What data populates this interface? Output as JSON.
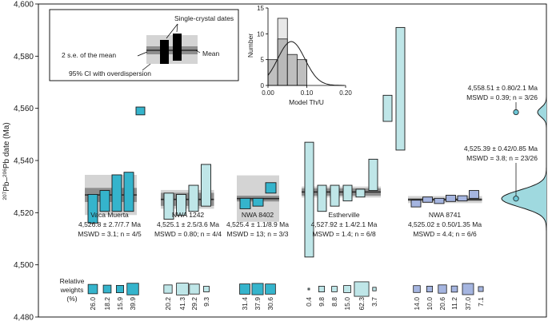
{
  "chart_data": {
    "type": "scatter",
    "title": "",
    "ylabel_superscript_1": "207",
    "ylabel_mid": "Pb–",
    "ylabel_superscript_2": "206",
    "ylabel_tail": "Pb date (Ma)",
    "ylim": [
      4480,
      4600
    ],
    "yticks": [
      4480,
      4500,
      4520,
      4540,
      4560,
      4580,
      4600
    ],
    "ytick_labels": [
      "4,480",
      "4,500",
      "4,520",
      "4,540",
      "4,560",
      "4,580",
      "4,600"
    ],
    "colors": {
      "teal": "#35b4cc",
      "teal_mid": "#6cc6d6",
      "pale_teal": "#bfe6e8",
      "blue": "#a5b5e0",
      "grey_band": "#d4d4d4",
      "mid_band": "#8e8e8e",
      "mean_line": "#2a2a2a"
    },
    "groups": [
      {
        "name": "Vaca Muerta",
        "mean_label": "4,526.8 ± 2.7/7.7 Ma",
        "mswd_label": "MSWD = 3.1; n = 4/5",
        "mean": 4526.8,
        "err_mid": 2.7,
        "err_outer": 7.7,
        "color": "#35b4cc",
        "dates": [
          {
            "center": 4521.5,
            "half": 5.5
          },
          {
            "center": 4524.5,
            "half": 4.0
          },
          {
            "center": 4527.5,
            "half": 7.0
          },
          {
            "center": 4528.0,
            "half": 7.5
          }
        ],
        "outliers": [
          {
            "center": 4559.0,
            "half": 1.5
          }
        ],
        "weights": [
          "26.0",
          "18.2",
          "15.9",
          "39.9"
        ]
      },
      {
        "name": "NWA 1242",
        "mean_label": "4,525.1 ± 2.5/3.6 Ma",
        "mswd_label": "MSWD = 0.80; n = 4/4",
        "mean": 4525.1,
        "err_mid": 2.5,
        "err_outer": 3.6,
        "color": "#bfe6e8",
        "dates": [
          {
            "center": 4522.5,
            "half": 5.0
          },
          {
            "center": 4523.0,
            "half": 4.0
          },
          {
            "center": 4525.5,
            "half": 5.0
          },
          {
            "center": 4530.5,
            "half": 8.0
          }
        ],
        "outliers": [],
        "weights": [
          "20.2",
          "41.3",
          "29.2",
          "9.3"
        ]
      },
      {
        "name": "NWA 8402",
        "mean_label": "4,525.4 ± 1.1/8.9 Ma",
        "mswd_label": "MSWD = 13; n = 3/3",
        "mean": 4525.4,
        "err_mid": 1.1,
        "err_outer": 8.9,
        "color": "#35b4cc",
        "dates": [
          {
            "center": 4523.5,
            "half": 2.0
          },
          {
            "center": 4524.0,
            "half": 1.5
          },
          {
            "center": 4529.5,
            "half": 2.0
          }
        ],
        "outliers": [],
        "weights": [
          "31.4",
          "37.9",
          "30.6"
        ]
      },
      {
        "name": "Estherville",
        "mean_label": "4,527.92 ± 1.4/2.1 Ma",
        "mswd_label": "MSWD = 1.4; n = 6/8",
        "mean": 4527.92,
        "err_mid": 1.4,
        "err_outer": 2.1,
        "color": "#bfe6e8",
        "dates": [
          {
            "center": 4525.0,
            "half": 22.0
          },
          {
            "center": 4525.5,
            "half": 5.0
          },
          {
            "center": 4526.5,
            "half": 4.0
          },
          {
            "center": 4527.5,
            "half": 3.0
          },
          {
            "center": 4527.5,
            "half": 1.5
          },
          {
            "center": 4534.5,
            "half": 6.0
          }
        ],
        "outliers": [
          {
            "center": 4560.0,
            "half": 5.0
          },
          {
            "center": 4567.5,
            "half": 23.5
          }
        ],
        "weights": [
          "0.4",
          "9.8",
          "8.8",
          "15.0",
          "62.3",
          "3.7"
        ]
      },
      {
        "name": "NWA 8741",
        "mean_label": "4,525.02 ± 0.50/1.35 Ma",
        "mswd_label": "MSWD = 4.4; n = 6/6",
        "mean": 4525.02,
        "err_mid": 0.5,
        "err_outer": 1.35,
        "color": "#a5b5e0",
        "dates": [
          {
            "center": 4523.5,
            "half": 1.3
          },
          {
            "center": 4525.0,
            "half": 1.0
          },
          {
            "center": 4524.5,
            "half": 1.0
          },
          {
            "center": 4525.5,
            "half": 1.2
          },
          {
            "center": 4525.5,
            "half": 1.0
          },
          {
            "center": 4527.0,
            "half": 1.5
          }
        ],
        "outliers": [],
        "weights": [
          "14.0",
          "10.0",
          "20.6",
          "11.2",
          "37.0",
          "7.1"
        ]
      }
    ],
    "weights_label_1": "Relative",
    "weights_label_2": "weights",
    "weights_label_3": "(%)",
    "mode_annotations": [
      {
        "line1": "4,558.51 ± 0.80/2.1 Ma",
        "line2": "MSWD = 0.39; n = 3/26",
        "value": 4558.51
      },
      {
        "line1": "4,525.39 ± 0.42/0.85 Ma",
        "line2": "MSWD = 3.8; n = 23/26",
        "value": 4525.39
      }
    ],
    "legend": {
      "single_crystal": "Single-crystal dates",
      "mean_error": "2 s.e. of the mean",
      "mean": "Mean",
      "ci": "95% CI with overdispersion"
    },
    "inset_histogram": {
      "type": "bar",
      "xlabel": "Model Th/U",
      "ylabel": "Number",
      "xlim": [
        0.0,
        0.2
      ],
      "ylim": [
        0,
        15
      ],
      "xticks": [
        0.0,
        0.1,
        0.2
      ],
      "xtick_labels": [
        "0.00",
        "0.10",
        "0.20"
      ],
      "yticks": [
        0,
        5,
        10,
        15
      ],
      "ytick_labels": [
        "0",
        "5",
        "10",
        "15"
      ],
      "bins": [
        {
          "from": 0.0,
          "to": 0.025,
          "value": 5
        },
        {
          "from": 0.025,
          "to": 0.05,
          "value": 9
        },
        {
          "from": 0.05,
          "to": 0.075,
          "value": 6
        },
        {
          "from": 0.075,
          "to": 0.1,
          "value": 5
        }
      ],
      "light_bin_top": 13,
      "density_peak_x": 0.06,
      "density_sd": 0.035,
      "density_peak": 8.5
    }
  }
}
